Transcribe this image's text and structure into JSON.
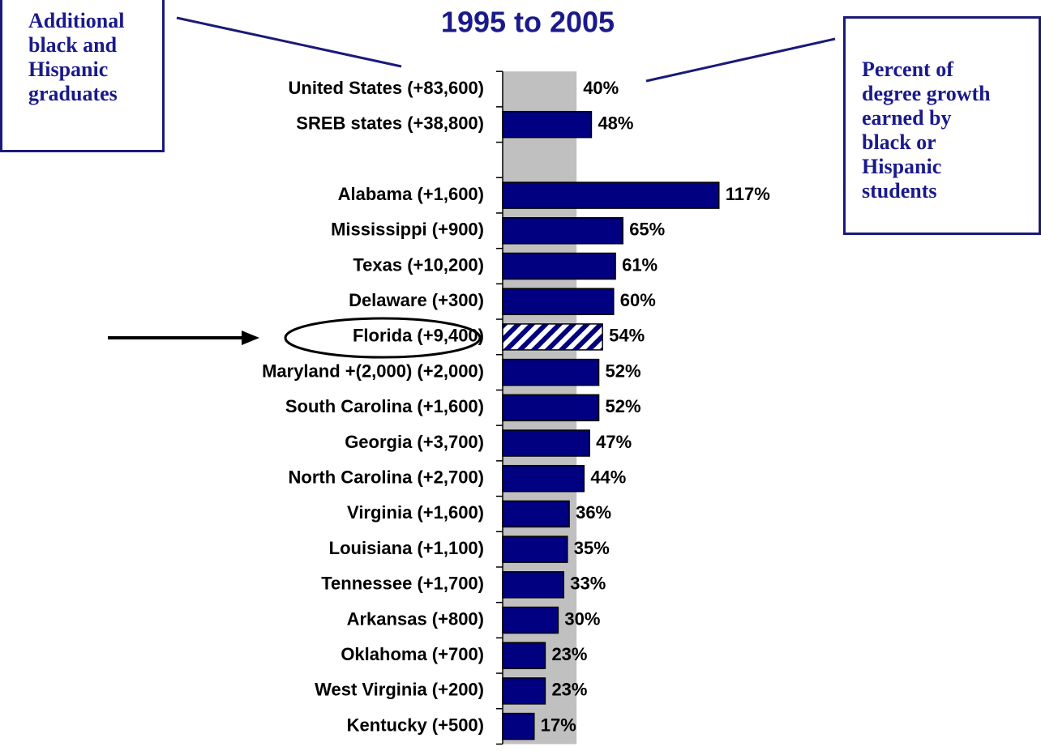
{
  "chart_data": {
    "type": "hbar",
    "title": "1995 to 2005",
    "categories": [
      "United States (+83,600)",
      "SREB states (+38,800)",
      null,
      "Alabama (+1,600)",
      "Mississippi (+900)",
      "Texas (+10,200)",
      "Delaware (+300)",
      "Florida (+9,400)",
      "Maryland +(2,000) (+2,000)",
      "South Carolina (+1,600)",
      "Georgia (+3,700)",
      "North Carolina (+2,700)",
      "Virginia (+1,600)",
      "Louisiana (+1,100)",
      "Tennessee (+1,700)",
      "Arkansas (+800)",
      "Oklahoma (+700)",
      "West Virginia (+200)",
      "Kentucky (+500)"
    ],
    "values": [
      40,
      48,
      null,
      117,
      65,
      61,
      60,
      54,
      52,
      52,
      47,
      44,
      36,
      35,
      33,
      30,
      23,
      23,
      17
    ],
    "value_labels": [
      "40%",
      "48%",
      null,
      "117%",
      "65%",
      "61%",
      "60%",
      "54%",
      "52%",
      "52%",
      "47%",
      "44%",
      "36%",
      "35%",
      "33%",
      "30%",
      "23%",
      "23%",
      "17%"
    ],
    "color": "#000080",
    "reference_color": "#c0c0c0",
    "highlight_index": 7,
    "annotations": [
      {
        "lines": [
          "Additional",
          "black and",
          "Hispanic",
          "graduates"
        ]
      },
      {
        "lines": [
          "Percent of",
          "degree growth",
          "earned by",
          "black or",
          "Hispanic",
          "students"
        ]
      }
    ]
  }
}
